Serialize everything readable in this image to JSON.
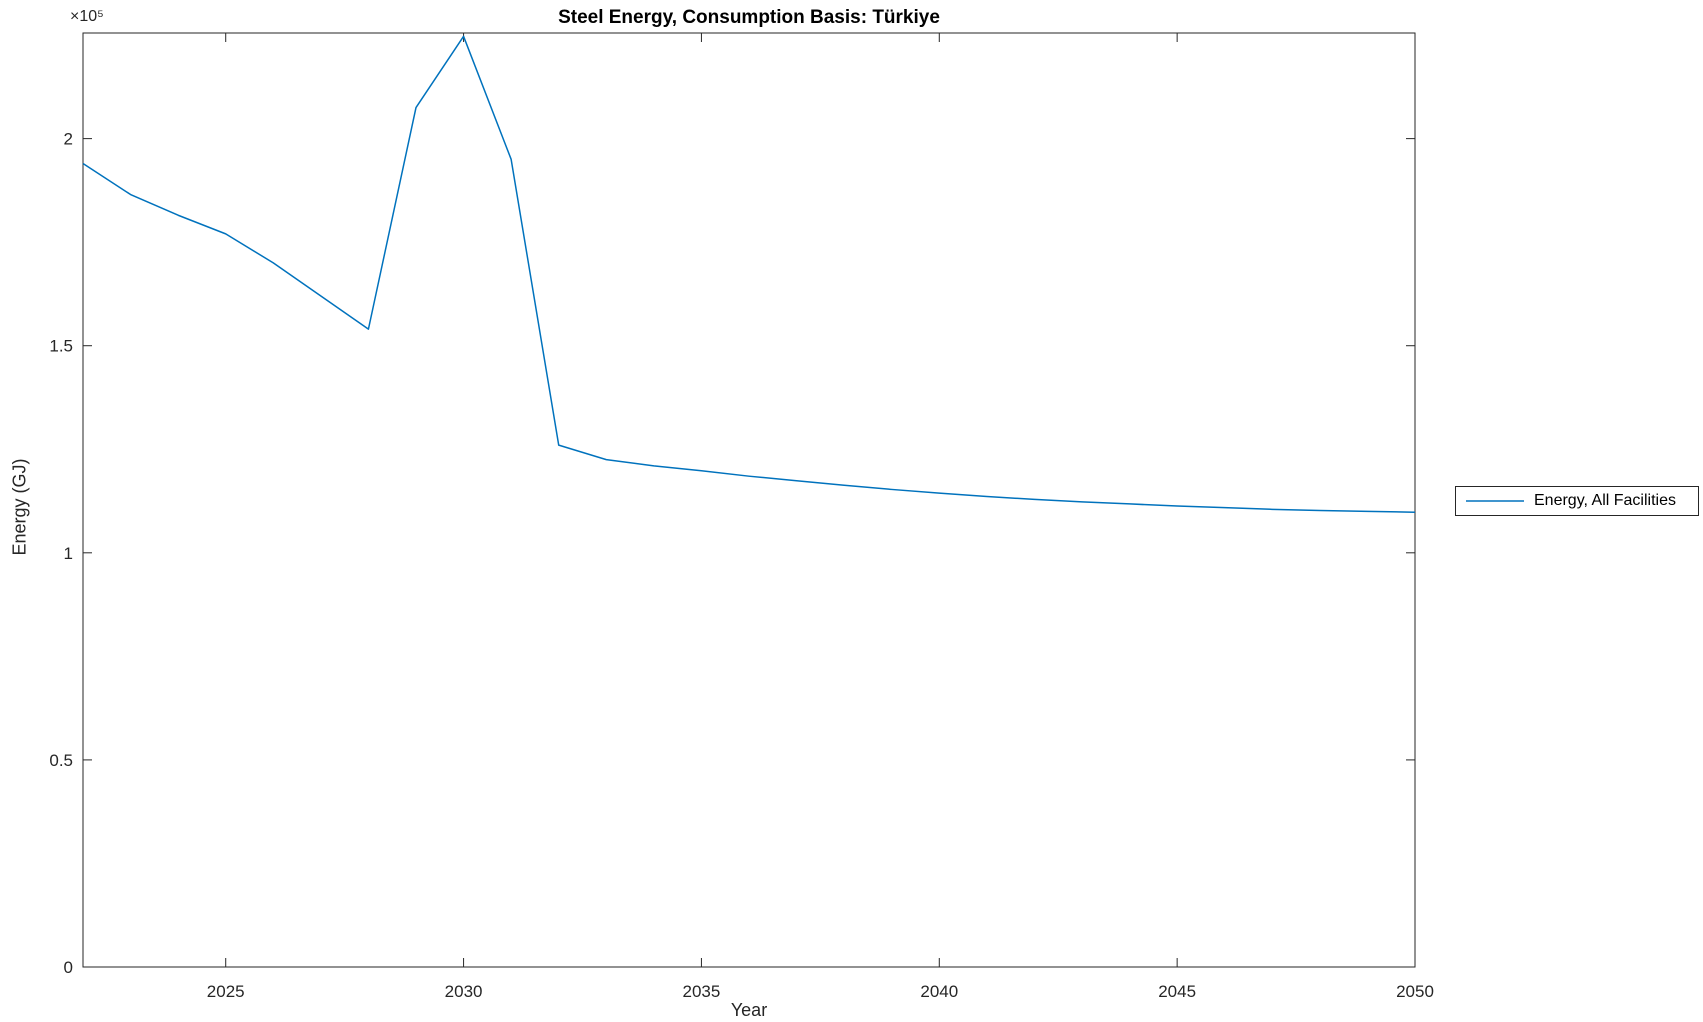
{
  "figure": {
    "background": "#ffffff",
    "axes_color": "#262626"
  },
  "chart_data": {
    "type": "line",
    "title": "Steel Energy, Consumption Basis: Türkiye",
    "xlabel": "Year",
    "ylabel": "Energy (GJ)",
    "y_multiplier_label": "×10⁵",
    "grid": false,
    "legend_position": "right-outside",
    "xlim": [
      2022,
      2050
    ],
    "ylim": [
      0,
      225500
    ],
    "xticks": [
      2025,
      2030,
      2035,
      2040,
      2045,
      2050
    ],
    "xtick_labels": [
      "2025",
      "2030",
      "2035",
      "2040",
      "2045",
      "2050"
    ],
    "yticks": [
      0,
      50000,
      100000,
      150000,
      200000
    ],
    "ytick_labels": [
      "0",
      "0.5",
      "1",
      "1.5",
      "2"
    ],
    "x": [
      2022,
      2023,
      2024,
      2025,
      2026,
      2027,
      2028,
      2029,
      2030,
      2031,
      2032,
      2033,
      2034,
      2035,
      2036,
      2037,
      2038,
      2039,
      2040,
      2041,
      2042,
      2043,
      2044,
      2045,
      2046,
      2047,
      2048,
      2049,
      2050
    ],
    "series": [
      {
        "name": "Energy, All Facilities",
        "color": "#0072BD",
        "values": [
          194000,
          186500,
          181500,
          177000,
          170000,
          162000,
          154000,
          207500,
          224700,
          195000,
          126000,
          122500,
          121000,
          119800,
          118500,
          117400,
          116300,
          115300,
          114400,
          113600,
          112900,
          112300,
          111800,
          111300,
          110900,
          110500,
          110200,
          110000,
          109800
        ]
      }
    ]
  }
}
